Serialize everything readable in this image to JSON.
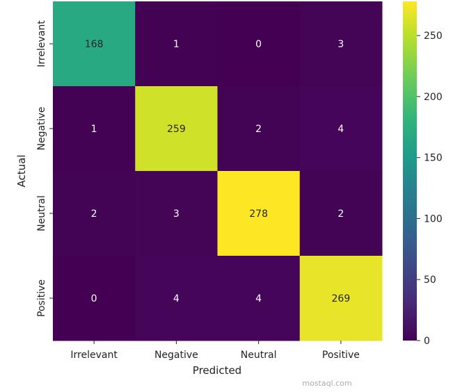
{
  "chart_data": {
    "type": "heatmap",
    "title": "",
    "xlabel": "Predicted",
    "ylabel": "Actual",
    "x_categories": [
      "Irrelevant",
      "Negative",
      "Neutral",
      "Positive"
    ],
    "y_categories": [
      "Irrelevant",
      "Negative",
      "Neutral",
      "Positive"
    ],
    "values": [
      [
        168,
        1,
        0,
        3
      ],
      [
        1,
        259,
        2,
        4
      ],
      [
        2,
        3,
        278,
        2
      ],
      [
        0,
        4,
        4,
        269
      ]
    ],
    "colormap": "viridis",
    "color_range": [
      0,
      278
    ],
    "colorbar_ticks": [
      0,
      50,
      100,
      150,
      200,
      250
    ],
    "annotations": true
  },
  "watermark": "mostaql.com"
}
